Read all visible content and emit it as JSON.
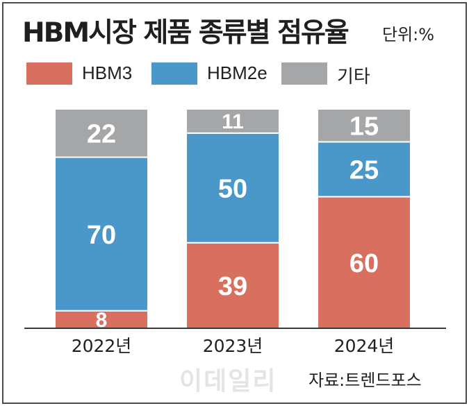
{
  "title": "HBM시장 제품 종류별 점유율",
  "unit_label": "단위:%",
  "source": "자료:트렌드포스",
  "watermark": "이데일리",
  "colors": {
    "HBM3": "#d9705f",
    "HBM2e": "#4a97c9",
    "other": "#a5a6a8",
    "frame": "#4a4a4a",
    "axis": "#3a3a3a"
  },
  "legend": [
    {
      "name": "HBM3",
      "color_key": "HBM3"
    },
    {
      "name": "HBM2e",
      "color_key": "HBM2e"
    },
    {
      "name": "기타",
      "color_key": "other"
    }
  ],
  "chart_data": {
    "type": "bar",
    "stacked": true,
    "categories": [
      "2022년",
      "2023년",
      "2024년"
    ],
    "series": [
      {
        "name": "HBM3",
        "color_key": "HBM3",
        "values": [
          8,
          39,
          60
        ]
      },
      {
        "name": "HBM2e",
        "color_key": "HBM2e",
        "values": [
          70,
          50,
          25
        ]
      },
      {
        "name": "기타",
        "color_key": "other",
        "values": [
          22,
          11,
          15
        ]
      }
    ],
    "ylim": [
      0,
      100
    ],
    "grid": false,
    "legend_position": "top-left"
  }
}
